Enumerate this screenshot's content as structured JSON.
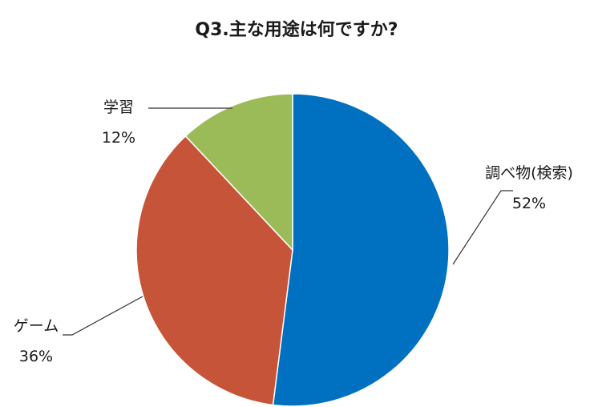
{
  "chart_data": {
    "type": "pie",
    "title": "Q3.主な用途は何ですか?",
    "categories": [
      "調べ物(検索)",
      "ゲーム",
      "学習"
    ],
    "values": [
      52,
      36,
      12
    ],
    "labels": [
      "52%",
      "36%",
      "12%"
    ],
    "colors": [
      "#0070C0",
      "#C65438",
      "#9BBB59"
    ],
    "start_angle": "12 o'clock",
    "direction": "clockwise",
    "legend": "none (data labels with leader lines)"
  }
}
